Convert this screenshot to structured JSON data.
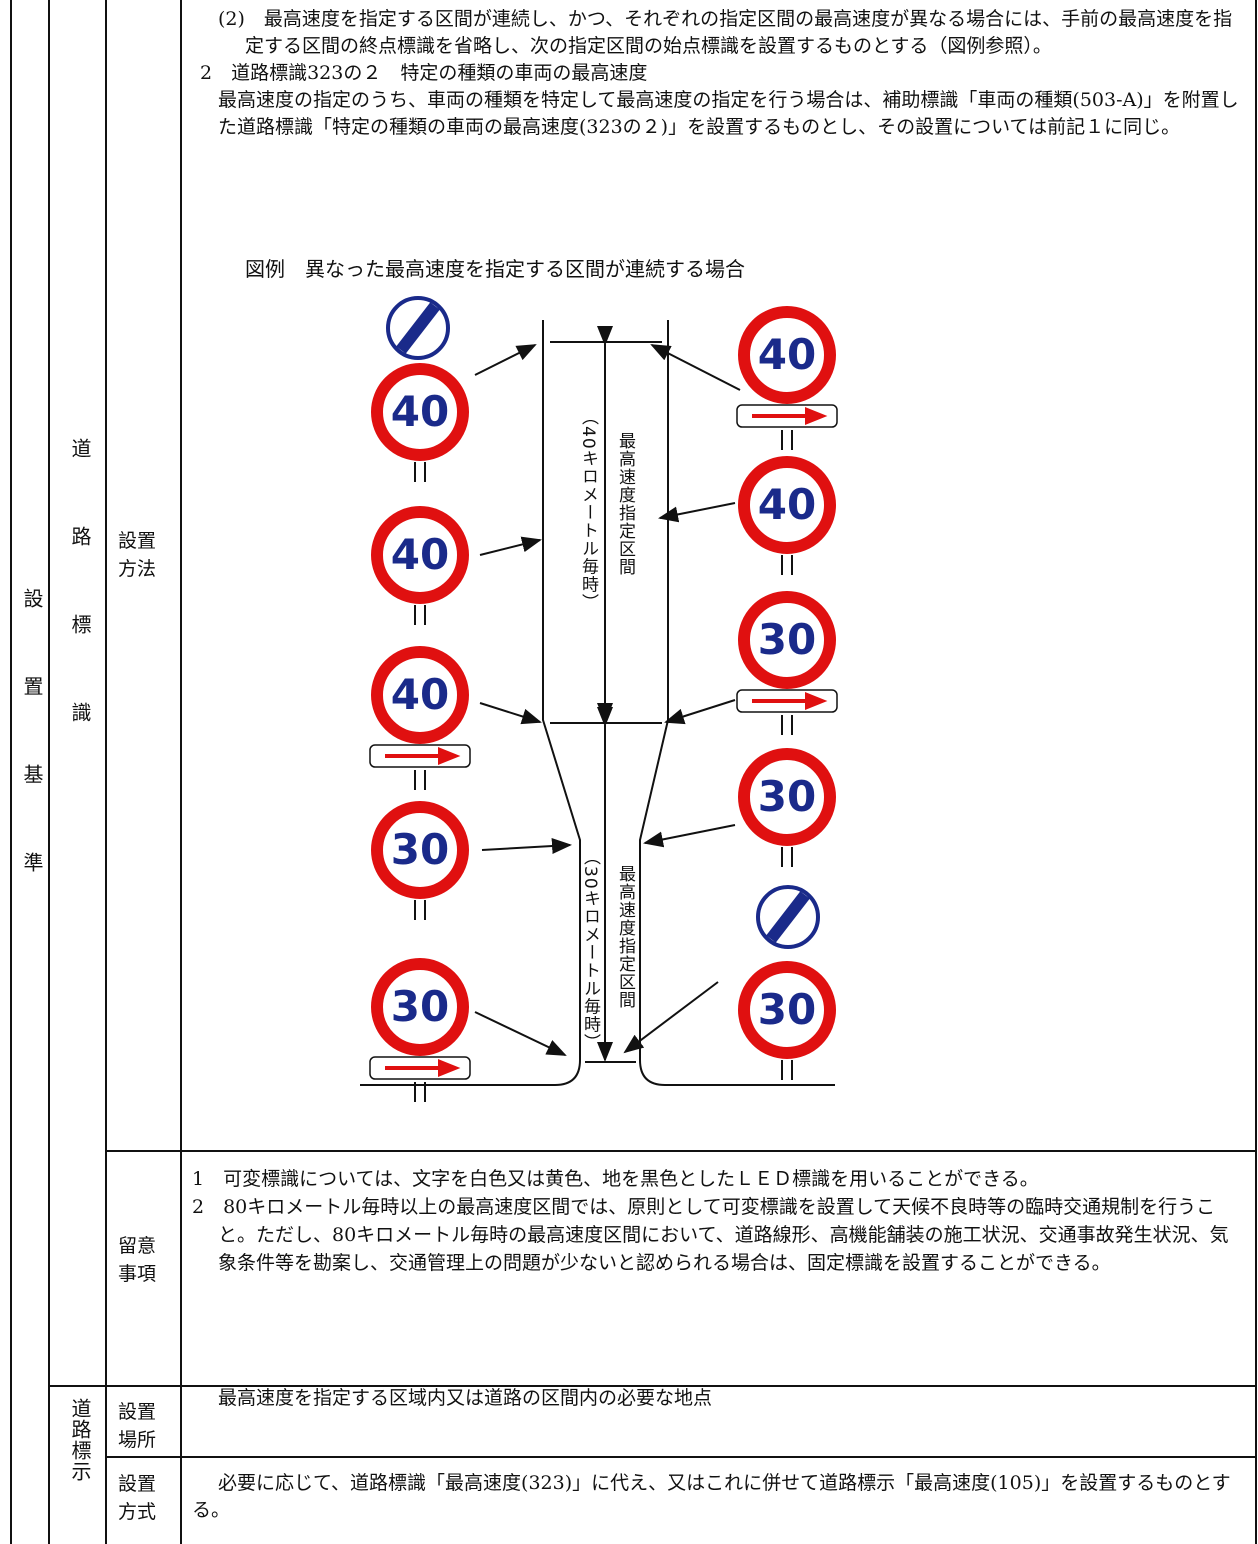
{
  "section_label": "設置基準",
  "groups": [
    {
      "label": "道路標識",
      "rows": [
        {
          "label": "設置方法",
          "paragraphs": [
            "(2)　最高速度を指定する区間が連続し、かつ、それぞれの指定区間の最高速度が異なる場合には、手前の最高速度を指定する区間の終点標識を省略し、次の指定区間の始点標識を設置するものとする（図例参照）。",
            "2　道路標識323の２　特定の種類の車両の最高速度",
            "最高速度の指定のうち、車両の種類を特定して最高速度の指定を行う場合は、補助標識「車両の種類(503-A)」を附置した道路標識「特定の種類の車両の最高速度(323の２)」を設置するものとし、その設置については前記１に同じ。"
          ]
        },
        {
          "label": "留意事項",
          "paragraphs": [
            "1　可変標識については、文字を白色又は黄色、地を黒色としたＬＥＤ標識を用いることができる。",
            "2　80キロメートル毎時以上の最高速度区間では、原則として可変標識を設置して天候不良時等の臨時交通規制を行うこと。ただし、80キロメートル毎時の最高速度区間において、道路線形、高機能舗装の施工状況、交通事故発生状況、気象条件等を勘案し、交通管理上の問題が少ないと認められる場合は、固定標識を設置することができる。"
          ]
        }
      ]
    },
    {
      "label": "道路標示",
      "rows": [
        {
          "label": "設置場所",
          "paragraphs": [
            "最高速度を指定する区域内又は道路の区間内の必要な地点"
          ]
        },
        {
          "label": "設置方式",
          "paragraphs": [
            "必要に応じて、道路標識「最高速度(323)」に代え、又はこれに併せて道路標示「最高速度(105)」を設置するものとする。"
          ]
        }
      ]
    }
  ],
  "figure": {
    "caption": "図例　異なった最高速度を指定する区間が連続する場合",
    "left_signs": [
      "40",
      "40",
      "40",
      "30",
      "30"
    ],
    "right_signs": [
      "40",
      "40",
      "30",
      "30",
      "30"
    ],
    "upper_speed": "（40キロメートル毎時）",
    "lower_speed": "（30キロメートル毎時）",
    "section_text": "最高速度指定区間"
  }
}
